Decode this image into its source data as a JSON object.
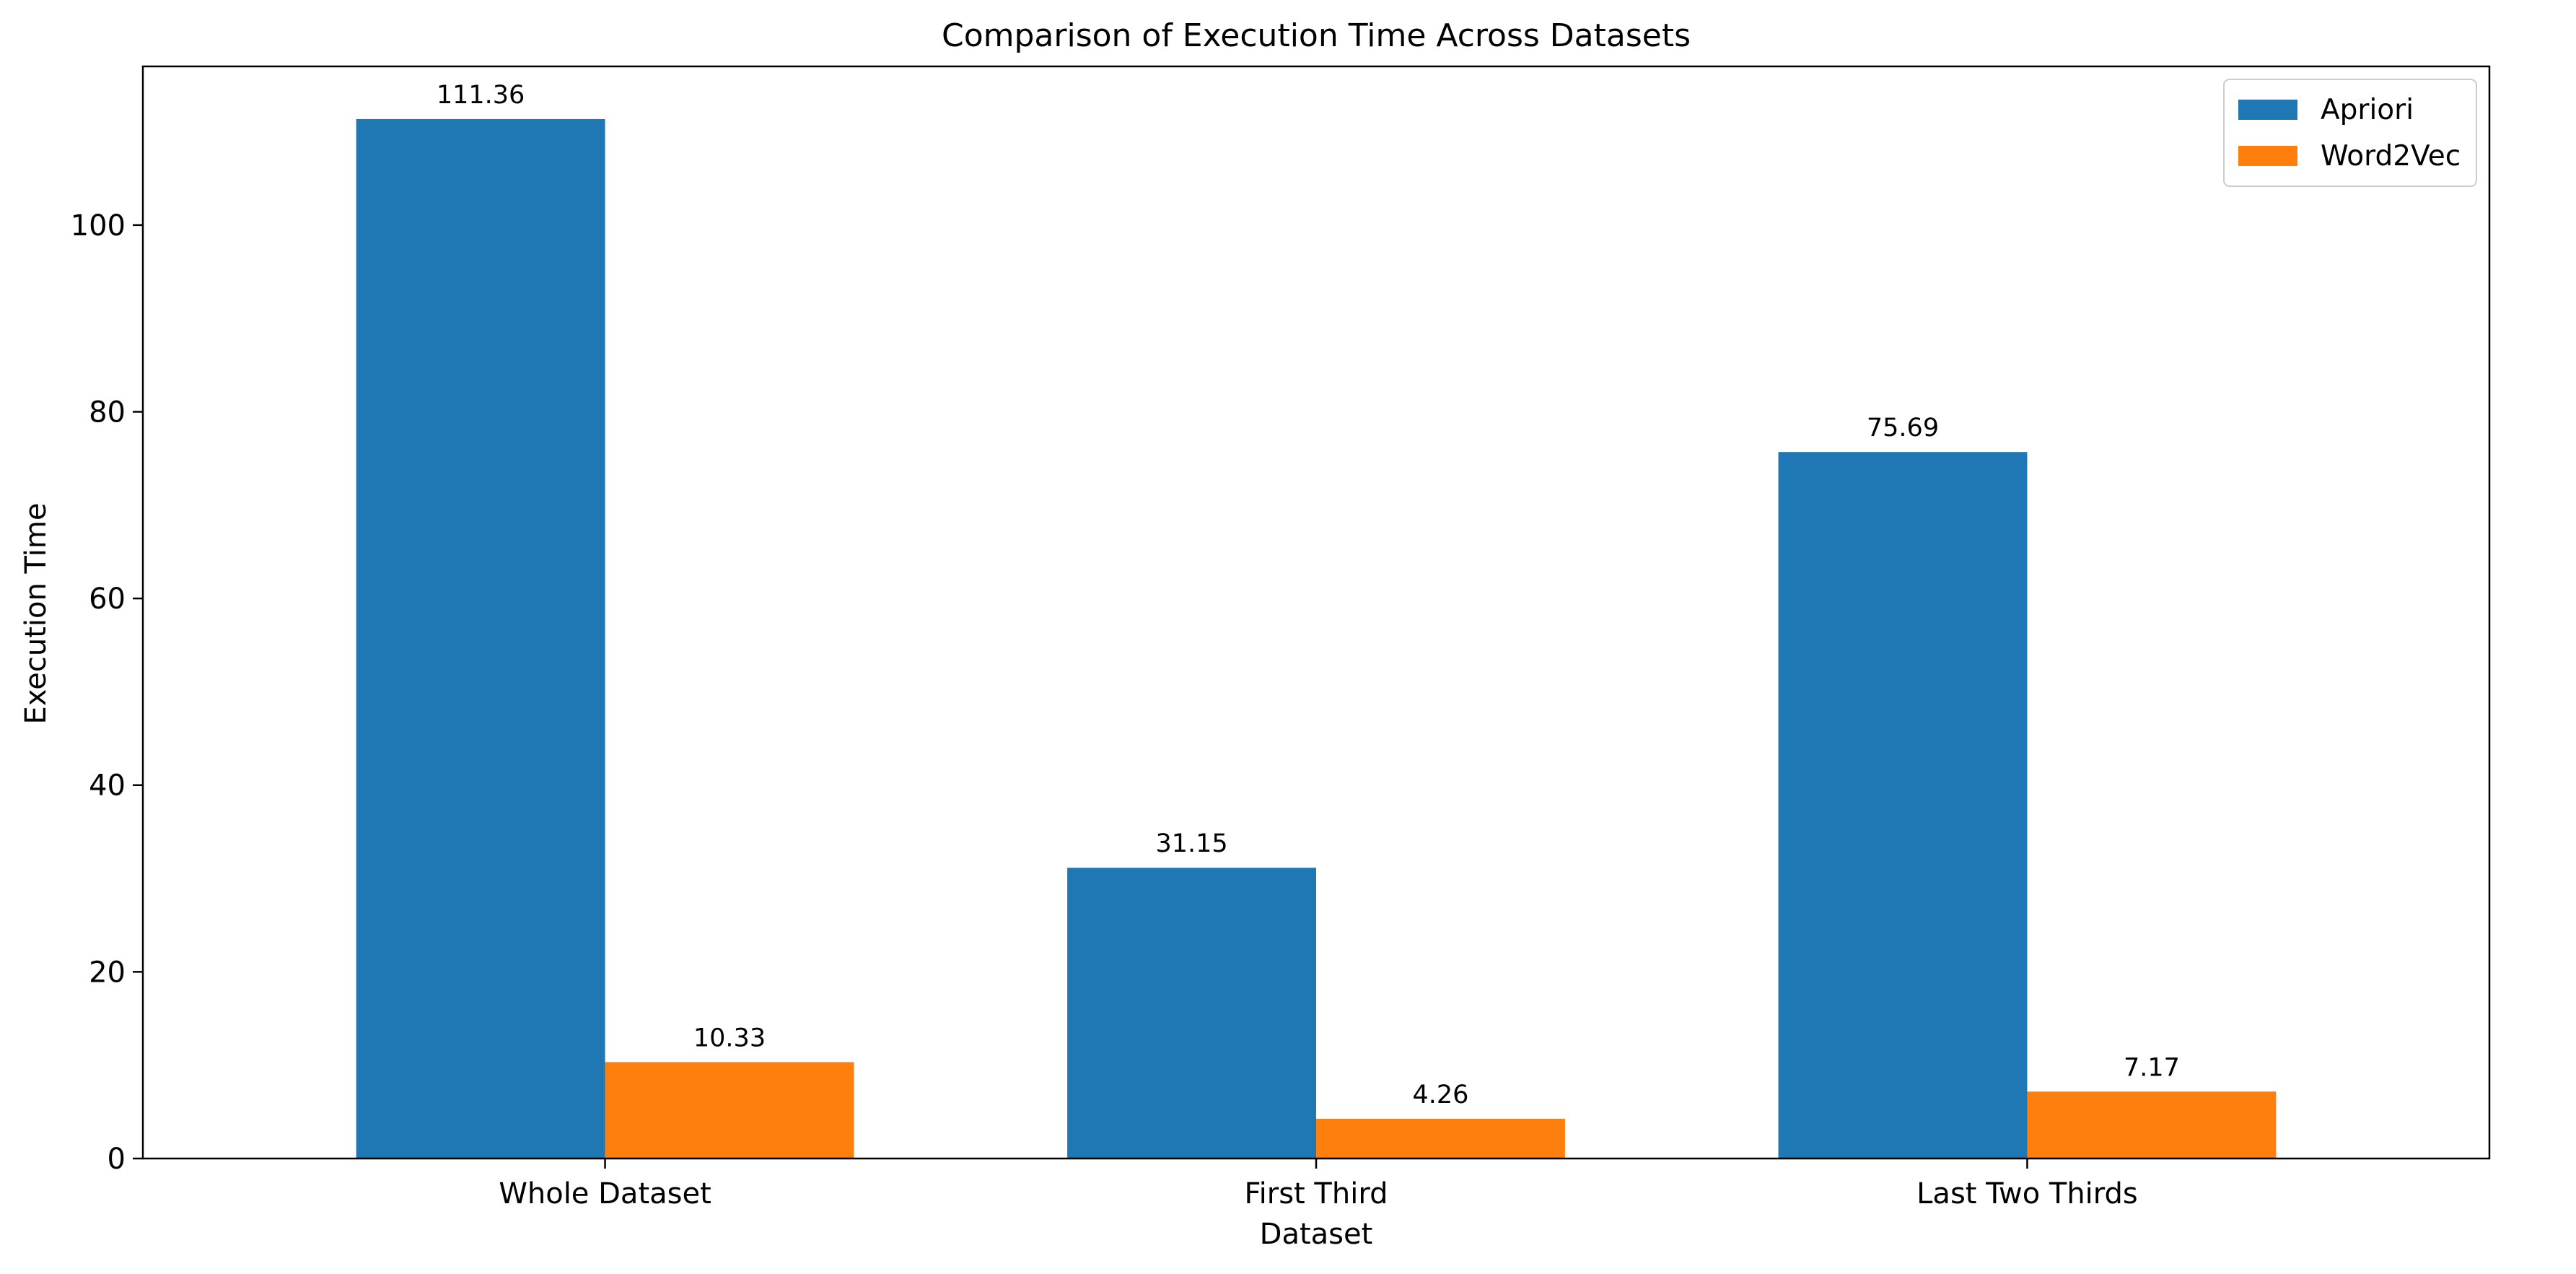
{
  "chart_data": {
    "type": "bar",
    "title": "Comparison of Execution Time Across Datasets",
    "xlabel": "Dataset",
    "ylabel": "Execution Time",
    "categories": [
      "Whole Dataset",
      "First Third",
      "Last Two Thirds"
    ],
    "series": [
      {
        "name": "Apriori",
        "values": [
          111.36,
          31.15,
          75.69
        ],
        "color": "#1f77b4"
      },
      {
        "name": "Word2Vec",
        "values": [
          10.33,
          4.26,
          7.17
        ],
        "color": "#ff7f0e"
      }
    ],
    "ylim": [
      0,
      117
    ],
    "yticks": [
      0,
      20,
      40,
      60,
      80,
      100
    ],
    "grid": false,
    "legend_position": "top-right"
  }
}
